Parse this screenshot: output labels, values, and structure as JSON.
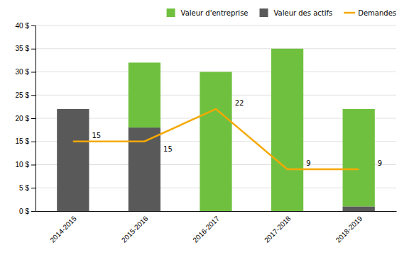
{
  "chart_data": {
    "type": "bar",
    "stacked": true,
    "categories": [
      "2014-2015",
      "2015-2016",
      "2016-2017",
      "2017-2018",
      "2018-2019"
    ],
    "series": [
      {
        "name": "Valeur des actifs",
        "color": "#595959",
        "values": [
          22,
          18,
          0,
          0,
          1
        ]
      },
      {
        "name": "Valeur d'entreprise",
        "color": "#70c040",
        "values": [
          0,
          14,
          30,
          35,
          21
        ]
      },
      {
        "name": "Demandes",
        "type": "line",
        "color": "#f5a800",
        "values": [
          15,
          15,
          22,
          9,
          9
        ],
        "data_labels": true
      }
    ],
    "ylim": [
      0,
      40
    ],
    "yticks": [
      {
        "value": 0,
        "label": "0 $"
      },
      {
        "value": 5,
        "label": "5 $"
      },
      {
        "value": 10,
        "label": "10 $"
      },
      {
        "value": 15,
        "label": "15 $"
      },
      {
        "value": 20,
        "label": "20 $"
      },
      {
        "value": 25,
        "label": "25 $"
      },
      {
        "value": 30,
        "label": "30 $"
      },
      {
        "value": 35,
        "label": "35 $"
      },
      {
        "value": 40,
        "label": "40 $"
      }
    ],
    "grid": true,
    "legend": "upper right"
  }
}
